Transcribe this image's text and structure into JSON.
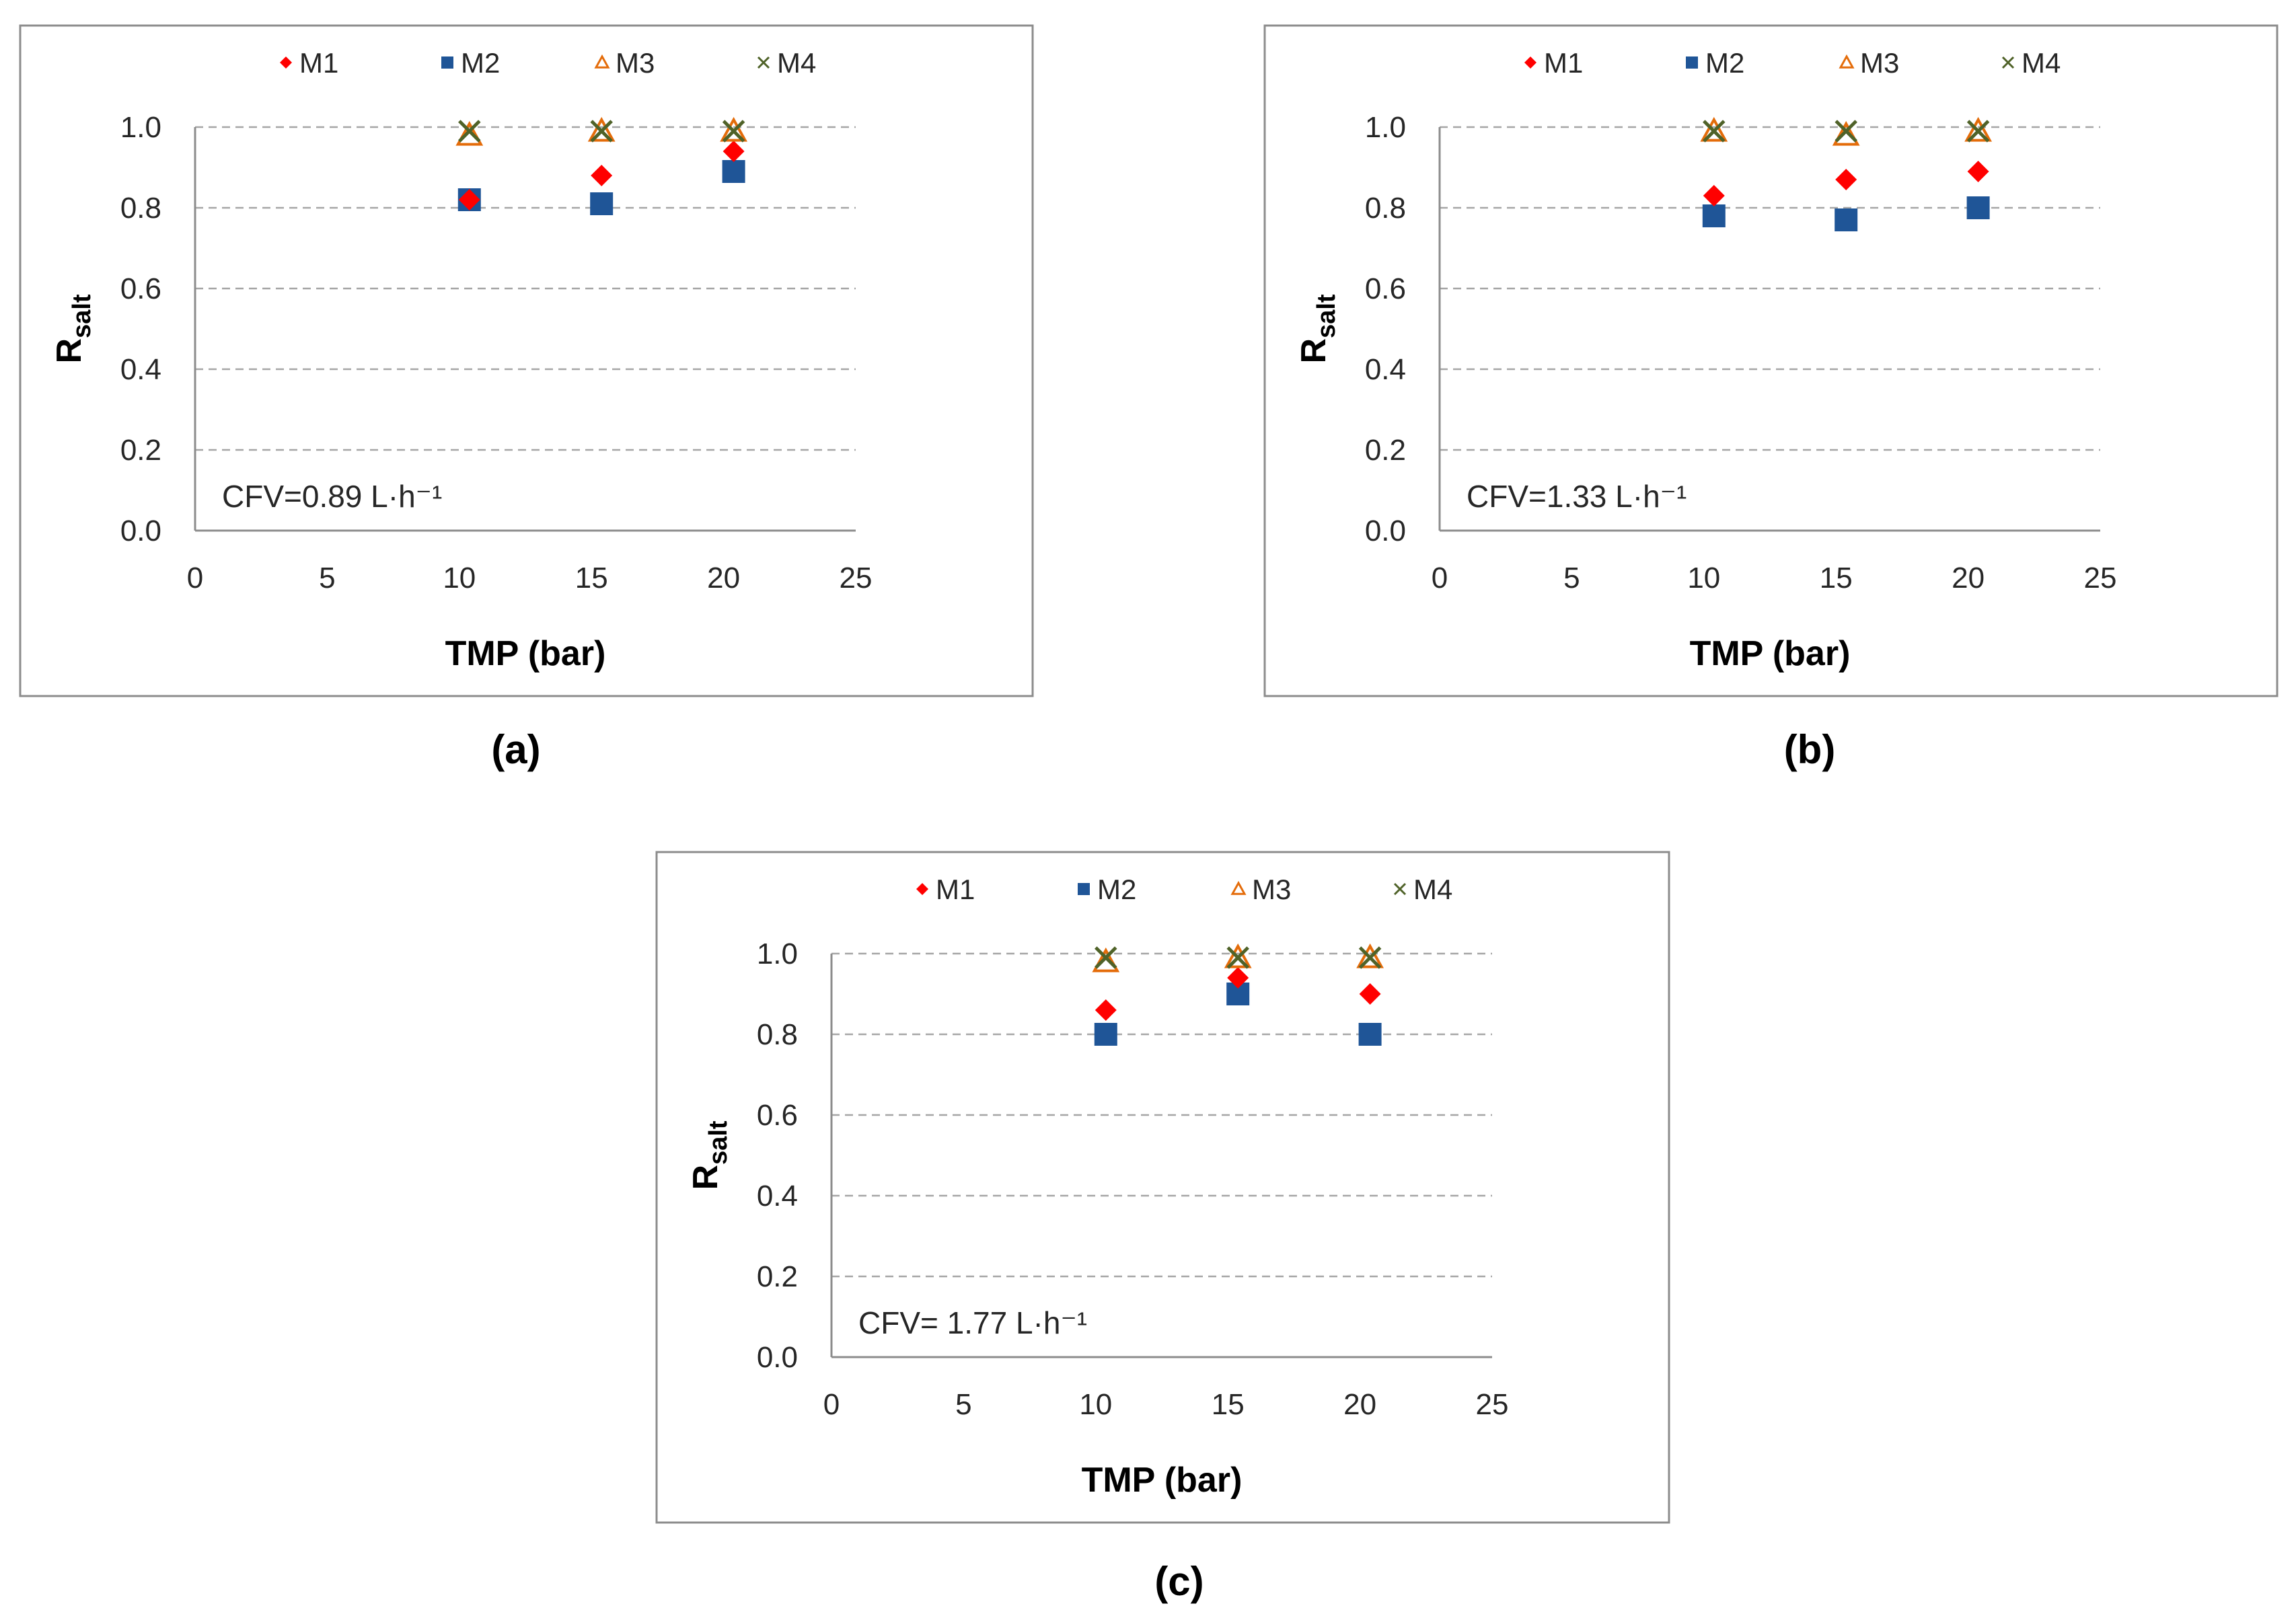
{
  "chart_data": [
    {
      "type": "scatter",
      "panel_label": "(a)",
      "annotation": "CFV=0.89 L·h⁻¹",
      "xlabel": "TMP (bar)",
      "ylabel_main": "R",
      "ylabel_sub": "salt",
      "xlim": [
        0,
        25
      ],
      "ylim": [
        0,
        1.0
      ],
      "xticks": [
        "0",
        "5",
        "10",
        "15",
        "20",
        "25"
      ],
      "yticks": [
        "0.0",
        "0.2",
        "0.4",
        "0.6",
        "0.8",
        "1.0"
      ],
      "grid": true,
      "legend_position": "top",
      "series": [
        {
          "name": "M1",
          "marker": "diamond",
          "color": "#ff0000",
          "x": [
            10,
            15,
            20
          ],
          "y": [
            0.82,
            0.88,
            0.94
          ]
        },
        {
          "name": "M2",
          "marker": "square",
          "color": "#1f5597",
          "x": [
            10,
            15,
            20
          ],
          "y": [
            0.82,
            0.81,
            0.89
          ]
        },
        {
          "name": "M3",
          "marker": "triangle",
          "color": "#e46c0a",
          "x": [
            10,
            15,
            20
          ],
          "y": [
            0.98,
            0.99,
            0.99
          ]
        },
        {
          "name": "M4",
          "marker": "cross",
          "color": "#4f6228",
          "x": [
            10,
            15,
            20
          ],
          "y": [
            0.99,
            0.99,
            0.99
          ]
        }
      ]
    },
    {
      "type": "scatter",
      "panel_label": "(b)",
      "annotation": "CFV=1.33 L·h⁻¹",
      "xlabel": "TMP (bar)",
      "ylabel_main": "R",
      "ylabel_sub": "salt",
      "xlim": [
        0,
        25
      ],
      "ylim": [
        0,
        1.0
      ],
      "xticks": [
        "0",
        "5",
        "10",
        "15",
        "20",
        "25"
      ],
      "yticks": [
        "0.0",
        "0.2",
        "0.4",
        "0.6",
        "0.8",
        "1.0"
      ],
      "grid": true,
      "legend_position": "top",
      "series": [
        {
          "name": "M1",
          "marker": "diamond",
          "color": "#ff0000",
          "x": [
            10,
            15,
            20
          ],
          "y": [
            0.83,
            0.87,
            0.89
          ]
        },
        {
          "name": "M2",
          "marker": "square",
          "color": "#1f5597",
          "x": [
            10,
            15,
            20
          ],
          "y": [
            0.78,
            0.77,
            0.8
          ]
        },
        {
          "name": "M3",
          "marker": "triangle",
          "color": "#e46c0a",
          "x": [
            10,
            15,
            20
          ],
          "y": [
            0.99,
            0.98,
            0.99
          ]
        },
        {
          "name": "M4",
          "marker": "cross",
          "color": "#4f6228",
          "x": [
            10,
            15,
            20
          ],
          "y": [
            0.99,
            0.99,
            0.99
          ]
        }
      ]
    },
    {
      "type": "scatter",
      "panel_label": "(c)",
      "annotation": "CFV= 1.77 L·h⁻¹",
      "xlabel": "TMP (bar)",
      "ylabel_main": "R",
      "ylabel_sub": "salt",
      "xlim": [
        0,
        25
      ],
      "ylim": [
        0,
        1.0
      ],
      "xticks": [
        "0",
        "5",
        "10",
        "15",
        "20",
        "25"
      ],
      "yticks": [
        "0.0",
        "0.2",
        "0.4",
        "0.6",
        "0.8",
        "1.0"
      ],
      "grid": true,
      "legend_position": "top",
      "series": [
        {
          "name": "M1",
          "marker": "diamond",
          "color": "#ff0000",
          "x": [
            10,
            15,
            20
          ],
          "y": [
            0.86,
            0.94,
            0.9
          ]
        },
        {
          "name": "M2",
          "marker": "square",
          "color": "#1f5597",
          "x": [
            10,
            15,
            20
          ],
          "y": [
            0.8,
            0.9,
            0.8
          ]
        },
        {
          "name": "M3",
          "marker": "triangle",
          "color": "#e46c0a",
          "x": [
            10,
            15,
            20
          ],
          "y": [
            0.98,
            0.99,
            0.99
          ]
        },
        {
          "name": "M4",
          "marker": "cross",
          "color": "#4f6228",
          "x": [
            10,
            15,
            20
          ],
          "y": [
            0.99,
            0.99,
            0.99
          ]
        }
      ]
    }
  ]
}
